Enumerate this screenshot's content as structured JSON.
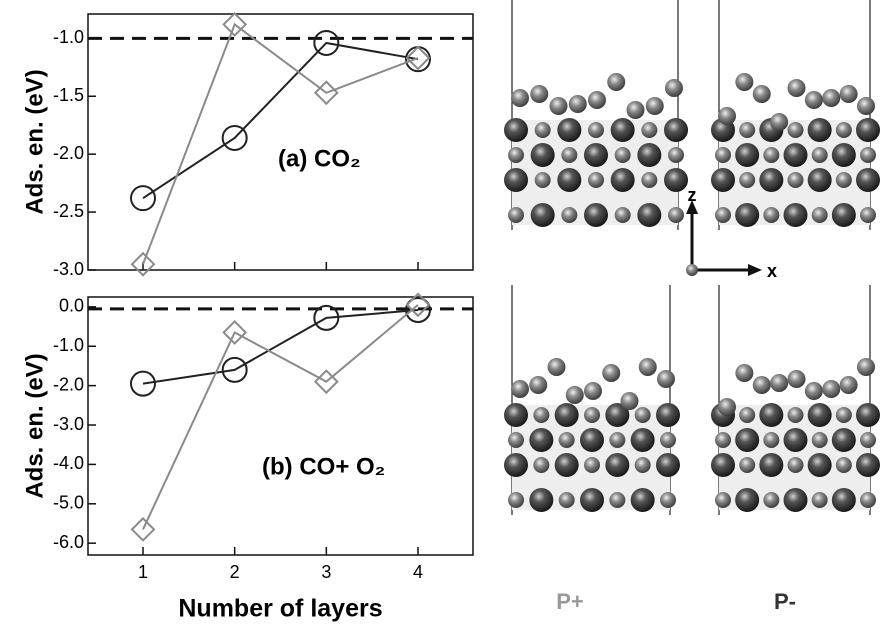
{
  "chart_data": [
    {
      "type": "line",
      "ylabel": "Ads. en. (eV)",
      "annotation": "(a) CO₂",
      "x": [
        1,
        2,
        3,
        4
      ],
      "xlim": [
        0.4,
        4.6
      ],
      "xticks": [
        1,
        2,
        3,
        4
      ],
      "show_xtick_labels": false,
      "ylim": [
        -3.0,
        -0.79
      ],
      "yticks": [
        {
          "value": -3.0,
          "label": "-3.0"
        },
        {
          "value": -2.5,
          "label": "-2.5"
        },
        {
          "value": -2.0,
          "label": "-2.0"
        },
        {
          "value": -1.5,
          "label": "-1.5"
        },
        {
          "value": -1.0,
          "label": "-1.0"
        }
      ],
      "reference_line": -1.0,
      "series": [
        {
          "color": "#222222",
          "marker": "circle",
          "values": [
            -2.38,
            -1.86,
            -1.04,
            -1.18
          ]
        },
        {
          "color": "#8a8a8a",
          "marker": "diamond",
          "values": [
            -2.95,
            -0.88,
            -1.47,
            -1.17
          ]
        }
      ]
    },
    {
      "type": "line",
      "ylabel": "Ads. en. (eV)",
      "xlabel": "Number of layers",
      "annotation": "(b) CO+  O₂",
      "x": [
        1,
        2,
        3,
        4
      ],
      "xlim": [
        0.4,
        4.6
      ],
      "xticks": [
        1,
        2,
        3,
        4
      ],
      "show_xtick_labels": true,
      "ylim": [
        -6.3,
        0.25
      ],
      "yticks": [
        {
          "value": -6.0,
          "label": "-6.0"
        },
        {
          "value": -5.0,
          "label": "-5.0"
        },
        {
          "value": -4.0,
          "label": "-4.0"
        },
        {
          "value": -3.0,
          "label": "-3.0"
        },
        {
          "value": -2.0,
          "label": "-2.0"
        },
        {
          "value": -1.0,
          "label": "-1.0"
        },
        {
          "value": 0.0,
          "label": "0.0"
        }
      ],
      "reference_line": -0.05,
      "series": [
        {
          "color": "#222222",
          "marker": "circle",
          "values": [
            -1.95,
            -1.6,
            -0.28,
            -0.08
          ]
        },
        {
          "color": "#8a8a8a",
          "marker": "diamond",
          "values": [
            -5.65,
            -0.65,
            -1.9,
            0.05
          ]
        }
      ]
    }
  ],
  "structures": {
    "labels": [
      "P+",
      "P-"
    ],
    "axis_labels": [
      "z",
      "x"
    ]
  }
}
